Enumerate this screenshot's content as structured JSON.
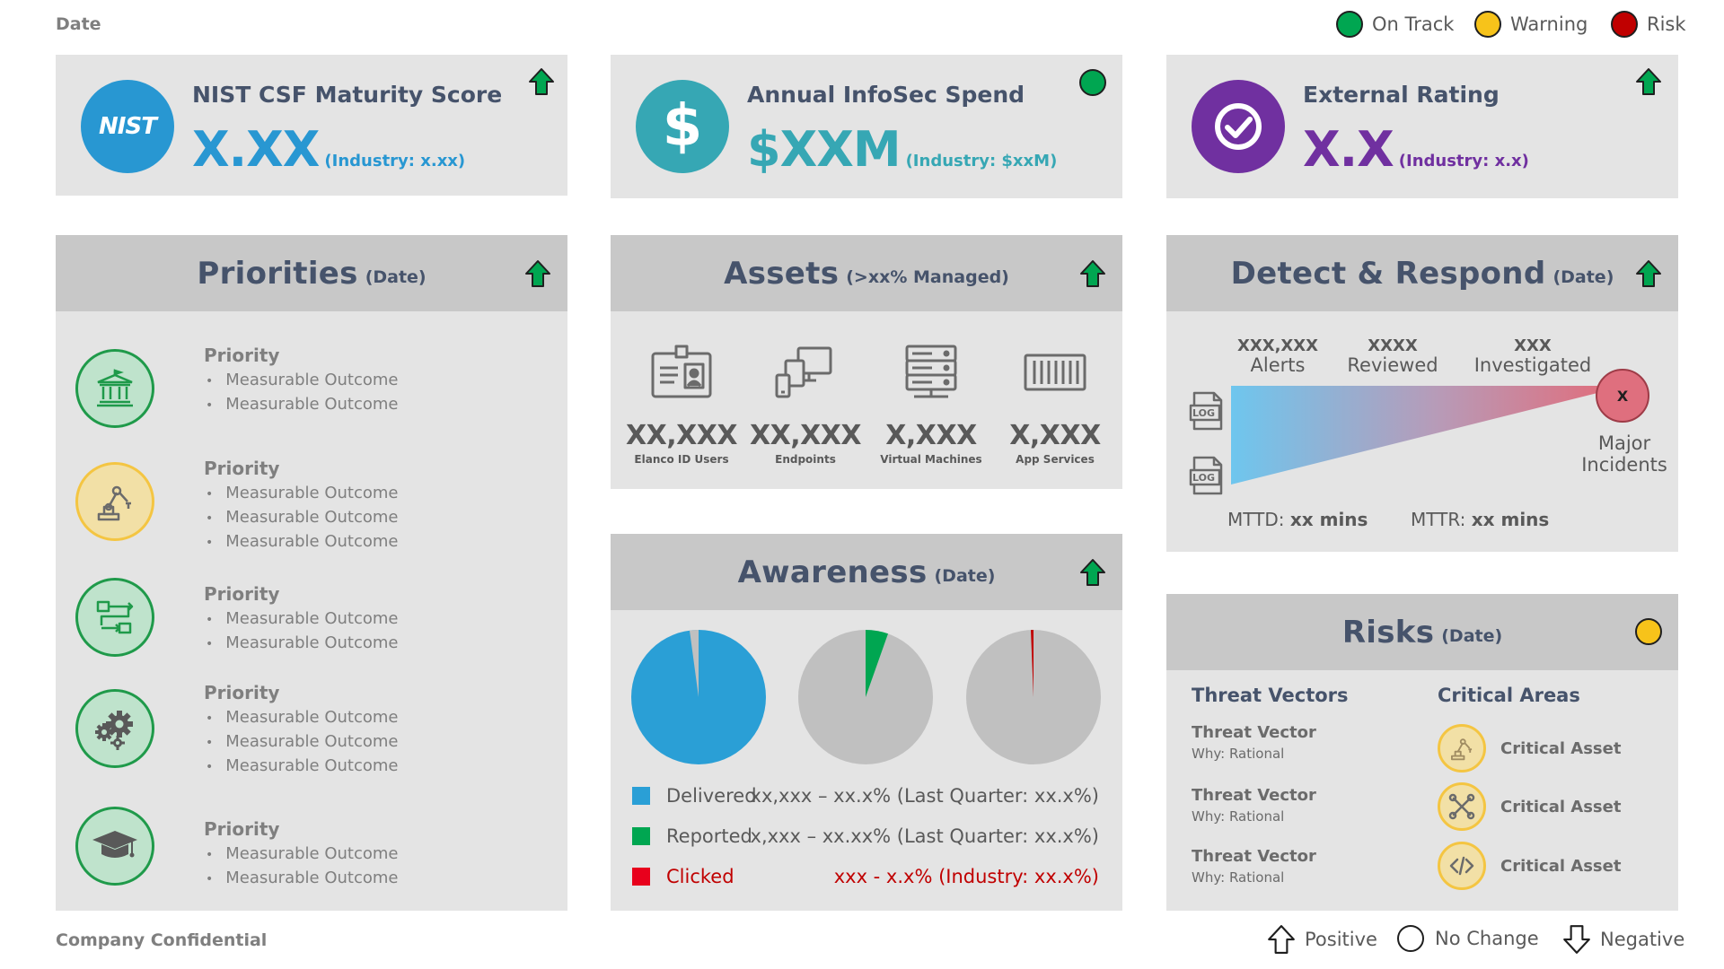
{
  "header": {
    "date": "Date",
    "legend": [
      {
        "label": "On Track",
        "color": "#00a651"
      },
      {
        "label": "Warning",
        "color": "#f7c31a"
      },
      {
        "label": "Risk",
        "color": "#c00000"
      }
    ]
  },
  "kpis": {
    "nist": {
      "icon_text": "NIST",
      "title": "NIST CSF Maturity Score",
      "value": "X.XX",
      "industry": "(Industry: x.xx)",
      "color": "#2897d2"
    },
    "spend": {
      "icon_text": "$",
      "title": "Annual InfoSec Spend",
      "value": "$XXM",
      "industry": "(Industry: $xxM)",
      "color": "#36a7b4"
    },
    "rating": {
      "title": "External Rating",
      "value": "X.X",
      "industry": "(Industry: x.x)",
      "color": "#7030a0"
    }
  },
  "priorities": {
    "title": "Priorities",
    "subtitle": "(Date)",
    "items": [
      {
        "title": "Priority",
        "icon": "bank-icon",
        "outcomes": [
          "Measurable Outcome",
          "Measurable Outcome"
        ]
      },
      {
        "title": "Priority",
        "icon": "robot-arm-icon",
        "outcomes": [
          "Measurable Outcome",
          "Measurable Outcome",
          "Measurable Outcome"
        ]
      },
      {
        "title": "Priority",
        "icon": "workflow-icon",
        "outcomes": [
          "Measurable Outcome",
          "Measurable Outcome"
        ]
      },
      {
        "title": "Priority",
        "icon": "gears-icon",
        "outcomes": [
          "Measurable Outcome",
          "Measurable Outcome",
          "Measurable Outcome"
        ]
      },
      {
        "title": "Priority",
        "icon": "graduation-cap-icon",
        "outcomes": [
          "Measurable Outcome",
          "Measurable Outcome"
        ]
      }
    ]
  },
  "assets": {
    "title": "Assets",
    "subtitle": "(>xx% Managed)",
    "items": [
      {
        "value": "XX,XXX",
        "label": "Elanco ID Users",
        "icon": "id-card-icon"
      },
      {
        "value": "XX,XXX",
        "label": "Endpoints",
        "icon": "devices-icon"
      },
      {
        "value": "X,XXX",
        "label": "Virtual Machines",
        "icon": "server-icon"
      },
      {
        "value": "X,XXX",
        "label": "App Services",
        "icon": "container-icon"
      }
    ]
  },
  "awareness": {
    "title": "Awareness",
    "subtitle": "(Date)",
    "legend": [
      {
        "name": "Delivered",
        "value": "xx,xxx – xx.x% (Last Quarter: xx.x%)",
        "color": "#2a9fd6"
      },
      {
        "name": "Reported",
        "value": "x,xxx – xx.xx% (Last Quarter: xx.x%)",
        "color": "#00a651"
      },
      {
        "name": "Clicked",
        "value": "xxx - x.x% (Industry: xx.x%)",
        "color": "#e8001c"
      }
    ]
  },
  "detect": {
    "title": "Detect & Respond",
    "subtitle": "(Date)",
    "stages": [
      {
        "num": "XXX,XXX",
        "label": "Alerts"
      },
      {
        "num": "XXXX",
        "label": "Reviewed"
      },
      {
        "num": "XXX",
        "label": "Investigated"
      }
    ],
    "log_label": "LOG",
    "major_mark": "X",
    "major_label_1": "Major",
    "major_label_2": "Incidents",
    "mttd_label": "MTTD:",
    "mttd_value": "xx mins",
    "mttr_label": "MTTR:",
    "mttr_value": "xx mins"
  },
  "risks": {
    "title": "Risks",
    "subtitle": "(Date)",
    "threat_heading": "Threat Vectors",
    "critical_heading": "Critical Areas",
    "threats": [
      {
        "name": "Threat Vector",
        "why": "Why: Rational"
      },
      {
        "name": "Threat Vector",
        "why": "Why: Rational"
      },
      {
        "name": "Threat Vector",
        "why": "Why: Rational"
      }
    ],
    "critical": [
      {
        "name": "Critical Asset",
        "icon": "robot-arm-icon"
      },
      {
        "name": "Critical Asset",
        "icon": "tools-icon"
      },
      {
        "name": "Critical Asset",
        "icon": "code-icon"
      }
    ]
  },
  "footer": {
    "confidential": "Company Confidential",
    "legend": [
      {
        "label": "Positive"
      },
      {
        "label": "No Change"
      },
      {
        "label": "Negative"
      }
    ]
  }
}
